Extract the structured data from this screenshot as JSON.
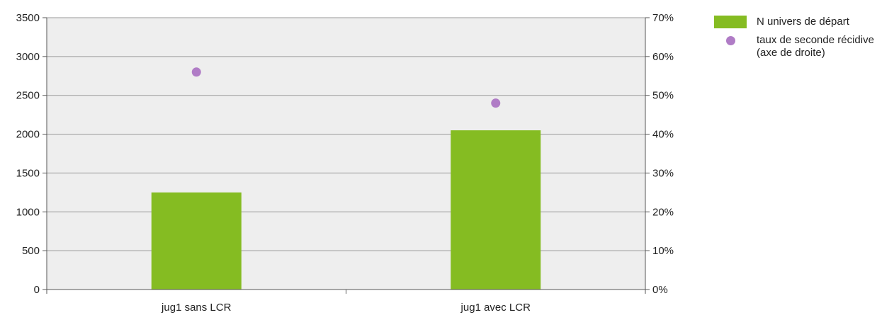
{
  "chart_data": {
    "type": "bar",
    "categories": [
      "jug1 sans LCR",
      "jug1 avec LCR"
    ],
    "series": [
      {
        "name": "N univers de départ",
        "kind": "bar",
        "axis": "left",
        "color": "#85BC22",
        "values": [
          1250,
          2050
        ]
      },
      {
        "name": "taux de seconde récidive\n(axe de droite)",
        "kind": "marker",
        "axis": "right",
        "color": "#B07CC6",
        "values": [
          0.56,
          0.48
        ]
      }
    ],
    "y_left": {
      "ylim": [
        0,
        3500
      ],
      "ticks": [
        0,
        500,
        1000,
        1500,
        2000,
        2500,
        3000,
        3500
      ],
      "tick_labels": [
        "0",
        "500",
        "1000",
        "1500",
        "2000",
        "2500",
        "3000",
        "3500"
      ]
    },
    "y_right": {
      "ylim": [
        0,
        0.7
      ],
      "ticks": [
        0,
        0.1,
        0.2,
        0.3,
        0.4,
        0.5,
        0.6,
        0.7
      ],
      "tick_labels": [
        "0%",
        "10%",
        "20%",
        "30%",
        "40%",
        "50%",
        "60%",
        "70%"
      ]
    },
    "plot_background": "#EEEEEE",
    "grid": true,
    "legend_position": "right"
  }
}
